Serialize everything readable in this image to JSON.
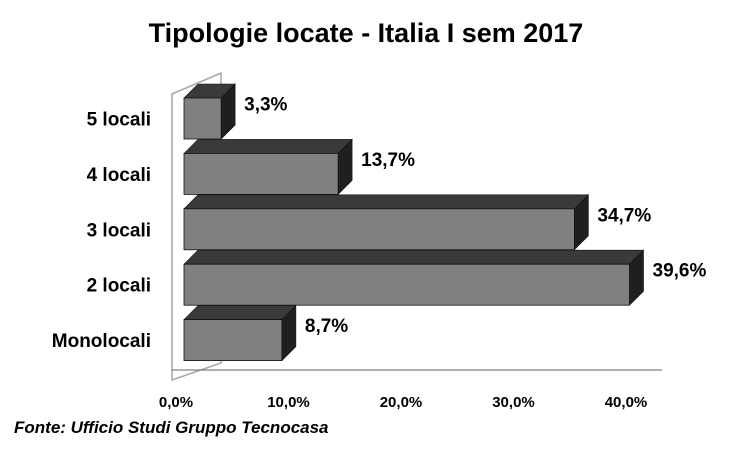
{
  "chart_data": {
    "type": "bar",
    "orientation": "horizontal",
    "style": "3d",
    "title": "Tipologie locate - Italia I sem 2017",
    "categories": [
      "Monolocali",
      "2 locali",
      "3 locali",
      "4 locali",
      "5 locali"
    ],
    "values": [
      8.7,
      39.6,
      34.7,
      13.7,
      3.3
    ],
    "value_labels": [
      "8,7%",
      "39,6%",
      "34,7%",
      "13,7%",
      "3,3%"
    ],
    "xlim": [
      0,
      40
    ],
    "x_ticks": [
      "0,0%",
      "10,0%",
      "20,0%",
      "30,0%",
      "40,0%"
    ],
    "grid": false,
    "legend": "none",
    "colors": {
      "bar_front": "#808080",
      "bar_side": "#1f1f1f",
      "bar_top": "#3a3a3a",
      "wall": "#a6a6a6",
      "axis": "#808080"
    }
  },
  "source_note": "Fonte: Ufficio Studi Gruppo Tecnocasa"
}
